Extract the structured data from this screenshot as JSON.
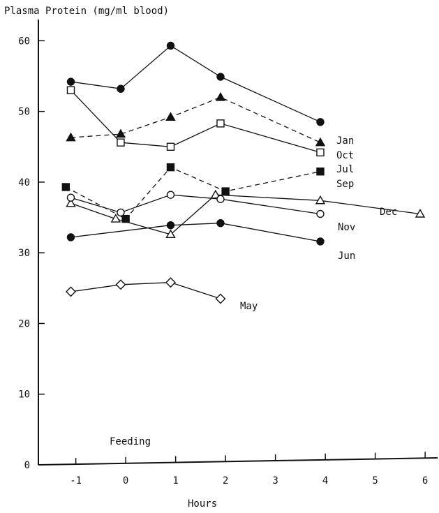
{
  "chart_data": {
    "type": "line",
    "ylabel": "Plasma Protein (mg/ml blood)",
    "xlabel": "Hours",
    "annotation": "Feeding",
    "xlim": [
      -1.75,
      6.25
    ],
    "ylim": [
      0,
      63
    ],
    "x_ticks": [
      {
        "value": -1,
        "label": "-1"
      },
      {
        "value": 0,
        "label": "0"
      },
      {
        "value": 1,
        "label": "1"
      },
      {
        "value": 2,
        "label": "2"
      },
      {
        "value": 3,
        "label": "3"
      },
      {
        "value": 4,
        "label": "4"
      },
      {
        "value": 5,
        "label": "5"
      },
      {
        "value": 6,
        "label": "6"
      }
    ],
    "y_ticks": [
      {
        "value": 0,
        "label": "0"
      },
      {
        "value": 10,
        "label": "10"
      },
      {
        "value": 20,
        "label": "20"
      },
      {
        "value": 30,
        "label": "30"
      },
      {
        "value": 40,
        "label": "40"
      },
      {
        "value": 50,
        "label": "50"
      },
      {
        "value": 60,
        "label": "60"
      }
    ],
    "grid": false,
    "series": [
      {
        "name": "Jan",
        "marker": "circle-filled",
        "dashed": false,
        "x": [
          -1.1,
          -0.1,
          0.9,
          1.9,
          3.9
        ],
        "y": [
          54.2,
          53.2,
          59.3,
          54.9,
          48.5
        ]
      },
      {
        "name": "Oct",
        "marker": "triangle-filled",
        "dashed": true,
        "x": [
          -1.1,
          -0.1,
          0.9,
          1.9,
          3.9
        ],
        "y": [
          46.3,
          46.8,
          49.2,
          52.0,
          45.6
        ]
      },
      {
        "name": "Jul",
        "marker": "square-open",
        "dashed": false,
        "x": [
          -1.1,
          -0.1,
          0.9,
          1.9,
          3.9
        ],
        "y": [
          53.0,
          45.6,
          45.0,
          48.3,
          44.2
        ]
      },
      {
        "name": "Sep",
        "marker": "square-filled",
        "dashed": true,
        "x": [
          -1.2,
          0.0,
          0.9,
          2.0,
          3.9
        ],
        "y": [
          39.3,
          34.8,
          42.1,
          38.7,
          41.5
        ]
      },
      {
        "name": "Dec",
        "marker": "triangle-open",
        "dashed": false,
        "x": [
          -1.1,
          -0.2,
          0.9,
          1.8,
          3.9,
          5.9
        ],
        "y": [
          37.0,
          34.8,
          32.6,
          38.2,
          37.4,
          35.5
        ]
      },
      {
        "name": "Nov",
        "marker": "circle-open",
        "dashed": false,
        "x": [
          -1.1,
          -0.1,
          0.9,
          1.9,
          3.9
        ],
        "y": [
          37.8,
          35.7,
          38.2,
          37.6,
          35.5
        ]
      },
      {
        "name": "Jun",
        "marker": "circle-filled",
        "dashed": false,
        "x": [
          -1.1,
          0.9,
          1.9,
          3.9
        ],
        "y": [
          32.2,
          33.9,
          34.2,
          31.6
        ]
      },
      {
        "name": "May",
        "marker": "diamond-open",
        "dashed": false,
        "x": [
          -1.1,
          -0.1,
          0.9,
          1.9
        ],
        "y": [
          24.5,
          25.5,
          25.8,
          23.5
        ]
      }
    ]
  }
}
